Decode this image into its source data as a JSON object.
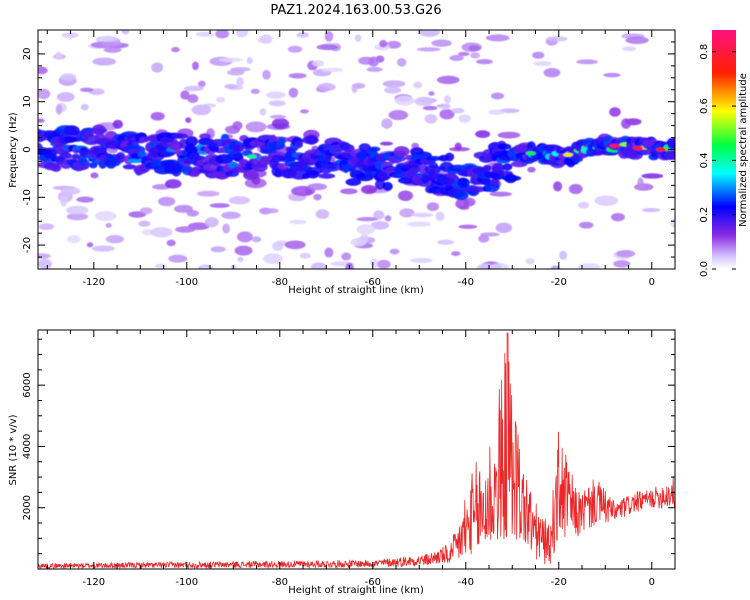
{
  "figure": {
    "title": "PAZ1.2024.163.00.53.G26"
  },
  "chart_data": [
    {
      "type": "heatmap",
      "xlabel": "Height of straight line (km)",
      "ylabel": "Frequency (Hz)",
      "xlim": [
        -132,
        5
      ],
      "ylim": [
        -25,
        25
      ],
      "xticks": [
        -120,
        -100,
        -80,
        -60,
        -40,
        -20,
        0
      ],
      "yticks": [
        -20,
        -10,
        0,
        10,
        20
      ],
      "colorbar": {
        "label": "Normalized spectral amplitude",
        "range": [
          0.0,
          0.88
        ],
        "ticks": [
          0.0,
          0.2,
          0.4,
          0.6,
          0.8
        ],
        "colormap": "gist_rainbow (violet→blue→cyan→green→yellow→red→magenta)"
      },
      "ridge_frequency_hz": [
        {
          "x": -130,
          "y": 0.0
        },
        {
          "x": -120,
          "y": 0.5
        },
        {
          "x": -110,
          "y": -1.0
        },
        {
          "x": -100,
          "y": -1.0
        },
        {
          "x": -90,
          "y": -1.5
        },
        {
          "x": -80,
          "y": -1.5
        },
        {
          "x": -70,
          "y": -2.0
        },
        {
          "x": -60,
          "y": -3.5
        },
        {
          "x": -50,
          "y": -4.5
        },
        {
          "x": -40,
          "y": -6.0
        },
        {
          "x": -35,
          "y": -4.0
        },
        {
          "x": -30,
          "y": -2.0
        },
        {
          "x": -25,
          "y": -0.5
        },
        {
          "x": -20,
          "y": -1.5
        },
        {
          "x": -15,
          "y": -0.5
        },
        {
          "x": -10,
          "y": 1.0
        },
        {
          "x": -5,
          "y": 0.5
        },
        {
          "x": 0,
          "y": 0.0
        },
        {
          "x": 5,
          "y": 0.0
        }
      ],
      "peak_amplitude_by_height": [
        {
          "x": -130,
          "y": 0.25
        },
        {
          "x": -120,
          "y": 0.3
        },
        {
          "x": -110,
          "y": 0.3
        },
        {
          "x": -100,
          "y": 0.32
        },
        {
          "x": -90,
          "y": 0.32
        },
        {
          "x": -85,
          "y": 0.38
        },
        {
          "x": -80,
          "y": 0.32
        },
        {
          "x": -70,
          "y": 0.25
        },
        {
          "x": -60,
          "y": 0.25
        },
        {
          "x": -50,
          "y": 0.25
        },
        {
          "x": -42,
          "y": 0.3
        },
        {
          "x": -30,
          "y": 0.3
        },
        {
          "x": -25,
          "y": 0.45
        },
        {
          "x": -20,
          "y": 0.5
        },
        {
          "x": -15,
          "y": 0.55
        },
        {
          "x": -10,
          "y": 0.5
        },
        {
          "x": -5,
          "y": 0.75
        },
        {
          "x": 0,
          "y": 0.7
        },
        {
          "x": 4,
          "y": 0.65
        }
      ]
    },
    {
      "type": "line",
      "xlabel": "Height of straight line (km)",
      "ylabel": "SNR (10 * v/v)",
      "xlim": [
        -132,
        5
      ],
      "ylim": [
        0,
        7800
      ],
      "xticks": [
        -120,
        -100,
        -80,
        -60,
        -40,
        -20,
        0
      ],
      "yticks": [
        2000,
        4000,
        6000
      ],
      "series_color": "#e8282a",
      "envelope": [
        {
          "x": -132,
          "lo": 20,
          "hi": 180
        },
        {
          "x": -60,
          "lo": 50,
          "hi": 300
        },
        {
          "x": -48,
          "lo": 100,
          "hi": 500
        },
        {
          "x": -43,
          "lo": 200,
          "hi": 900
        },
        {
          "x": -40,
          "lo": 400,
          "hi": 2700
        },
        {
          "x": -36,
          "lo": 700,
          "hi": 4200
        },
        {
          "x": -34,
          "lo": 900,
          "hi": 5000
        },
        {
          "x": -31,
          "lo": 1000,
          "hi": 7700
        },
        {
          "x": -28,
          "lo": 700,
          "hi": 3700
        },
        {
          "x": -25,
          "lo": 200,
          "hi": 2200
        },
        {
          "x": -22,
          "lo": 100,
          "hi": 1400
        },
        {
          "x": -20,
          "lo": 800,
          "hi": 4600
        },
        {
          "x": -16,
          "lo": 1000,
          "hi": 2500
        },
        {
          "x": -12,
          "lo": 1400,
          "hi": 3000
        },
        {
          "x": -8,
          "lo": 1500,
          "hi": 2200
        },
        {
          "x": -4,
          "lo": 1800,
          "hi": 2500
        },
        {
          "x": 0,
          "lo": 2000,
          "hi": 2600
        },
        {
          "x": 5,
          "lo": 1900,
          "hi": 3100
        }
      ],
      "peak": {
        "x": -31,
        "y": 7700
      }
    }
  ]
}
